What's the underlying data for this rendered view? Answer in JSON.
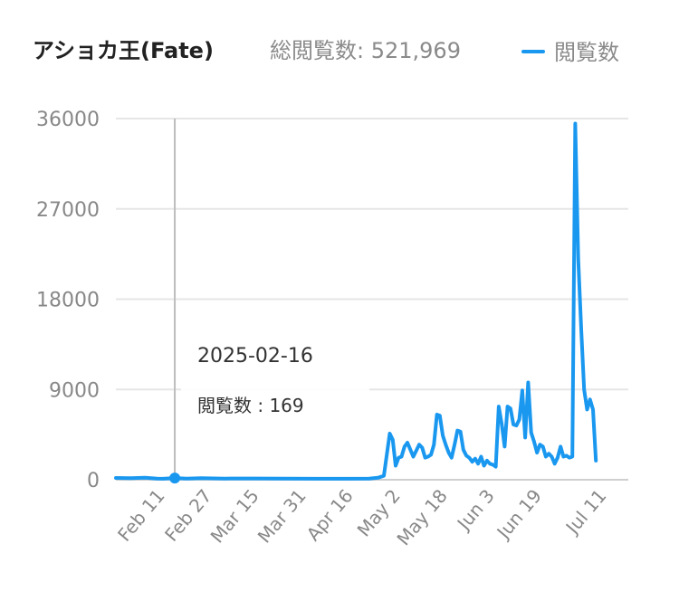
{
  "header": {
    "title": "アショカ王(Fate)",
    "total_label": "総閲覧数: 521,969"
  },
  "legend": {
    "label": "閲覧数",
    "color": "#1a98f0"
  },
  "tooltip": {
    "date": "2025-02-16",
    "value_text": "閲覧数 : 169",
    "x": "2025-02-16",
    "y": 169
  },
  "chart_data": {
    "type": "line",
    "title": "アショカ王(Fate)",
    "xlabel": "",
    "ylabel": "",
    "x_range": [
      "2025-01-27",
      "2025-07-20"
    ],
    "ylim": [
      0,
      36000
    ],
    "yticks": [
      0,
      9000,
      18000,
      27000,
      36000
    ],
    "ytick_labels": [
      "0",
      "9000",
      "18000",
      "27000",
      "36000"
    ],
    "xticks": [
      "2025-02-11",
      "2025-02-27",
      "2025-03-15",
      "2025-03-31",
      "2025-04-16",
      "2025-05-02",
      "2025-05-18",
      "2025-06-03",
      "2025-06-19",
      "2025-07-11"
    ],
    "xtick_labels": [
      "Feb 11",
      "Feb 27",
      "Mar 15",
      "Mar 31",
      "Apr 16",
      "May 2",
      "May 18",
      "Jun 3",
      "Jun 19",
      "Jul 11"
    ],
    "grid": true,
    "legend_position": "top-right",
    "series": [
      {
        "name": "閲覧数",
        "color": "#1a98f0",
        "points": [
          [
            "2025-01-27",
            180
          ],
          [
            "2025-02-01",
            150
          ],
          [
            "2025-02-06",
            200
          ],
          [
            "2025-02-10",
            110
          ],
          [
            "2025-02-12",
            100
          ],
          [
            "2025-02-16",
            169
          ],
          [
            "2025-02-20",
            120
          ],
          [
            "2025-02-25",
            150
          ],
          [
            "2025-03-05",
            120
          ],
          [
            "2025-03-15",
            130
          ],
          [
            "2025-03-25",
            110
          ],
          [
            "2025-04-05",
            100
          ],
          [
            "2025-04-16",
            100
          ],
          [
            "2025-04-23",
            120
          ],
          [
            "2025-04-26",
            200
          ],
          [
            "2025-04-28",
            400
          ],
          [
            "2025-04-30",
            4600
          ],
          [
            "2025-05-01",
            4000
          ],
          [
            "2025-05-02",
            1400
          ],
          [
            "2025-05-03",
            2200
          ],
          [
            "2025-05-04",
            2300
          ],
          [
            "2025-05-05",
            3300
          ],
          [
            "2025-05-06",
            3700
          ],
          [
            "2025-05-07",
            3000
          ],
          [
            "2025-05-08",
            2300
          ],
          [
            "2025-05-09",
            2900
          ],
          [
            "2025-05-10",
            3500
          ],
          [
            "2025-05-11",
            3200
          ],
          [
            "2025-05-12",
            2200
          ],
          [
            "2025-05-13",
            2300
          ],
          [
            "2025-05-14",
            2500
          ],
          [
            "2025-05-15",
            3500
          ],
          [
            "2025-05-16",
            6500
          ],
          [
            "2025-05-17",
            6400
          ],
          [
            "2025-05-18",
            4400
          ],
          [
            "2025-05-19",
            3500
          ],
          [
            "2025-05-20",
            2700
          ],
          [
            "2025-05-21",
            2200
          ],
          [
            "2025-05-22",
            3500
          ],
          [
            "2025-05-23",
            4900
          ],
          [
            "2025-05-24",
            4800
          ],
          [
            "2025-05-25",
            3000
          ],
          [
            "2025-05-26",
            2400
          ],
          [
            "2025-05-27",
            2200
          ],
          [
            "2025-05-28",
            1800
          ],
          [
            "2025-05-29",
            2100
          ],
          [
            "2025-05-30",
            1600
          ],
          [
            "2025-05-31",
            2300
          ],
          [
            "2025-06-01",
            1400
          ],
          [
            "2025-06-02",
            1900
          ],
          [
            "2025-06-03",
            1600
          ],
          [
            "2025-06-04",
            1500
          ],
          [
            "2025-06-05",
            1300
          ],
          [
            "2025-06-06",
            7300
          ],
          [
            "2025-06-07",
            5600
          ],
          [
            "2025-06-08",
            3300
          ],
          [
            "2025-06-09",
            7300
          ],
          [
            "2025-06-10",
            7100
          ],
          [
            "2025-06-11",
            5500
          ],
          [
            "2025-06-12",
            5400
          ],
          [
            "2025-06-13",
            6000
          ],
          [
            "2025-06-14",
            8900
          ],
          [
            "2025-06-15",
            4200
          ],
          [
            "2025-06-16",
            9700
          ],
          [
            "2025-06-17",
            4700
          ],
          [
            "2025-06-18",
            3800
          ],
          [
            "2025-06-19",
            2700
          ],
          [
            "2025-06-20",
            3500
          ],
          [
            "2025-06-21",
            3300
          ],
          [
            "2025-06-22",
            2300
          ],
          [
            "2025-06-23",
            2600
          ],
          [
            "2025-06-24",
            2300
          ],
          [
            "2025-06-25",
            1600
          ],
          [
            "2025-06-26",
            2200
          ],
          [
            "2025-06-27",
            3300
          ],
          [
            "2025-06-28",
            2300
          ],
          [
            "2025-06-29",
            2400
          ],
          [
            "2025-06-30",
            2200
          ],
          [
            "2025-07-01",
            2300
          ],
          [
            "2025-07-02",
            35500
          ],
          [
            "2025-07-03",
            22000
          ],
          [
            "2025-07-04",
            15000
          ],
          [
            "2025-07-05",
            9000
          ],
          [
            "2025-07-06",
            7000
          ],
          [
            "2025-07-07",
            8000
          ],
          [
            "2025-07-08",
            7000
          ],
          [
            "2025-07-09",
            1900
          ]
        ]
      }
    ]
  }
}
